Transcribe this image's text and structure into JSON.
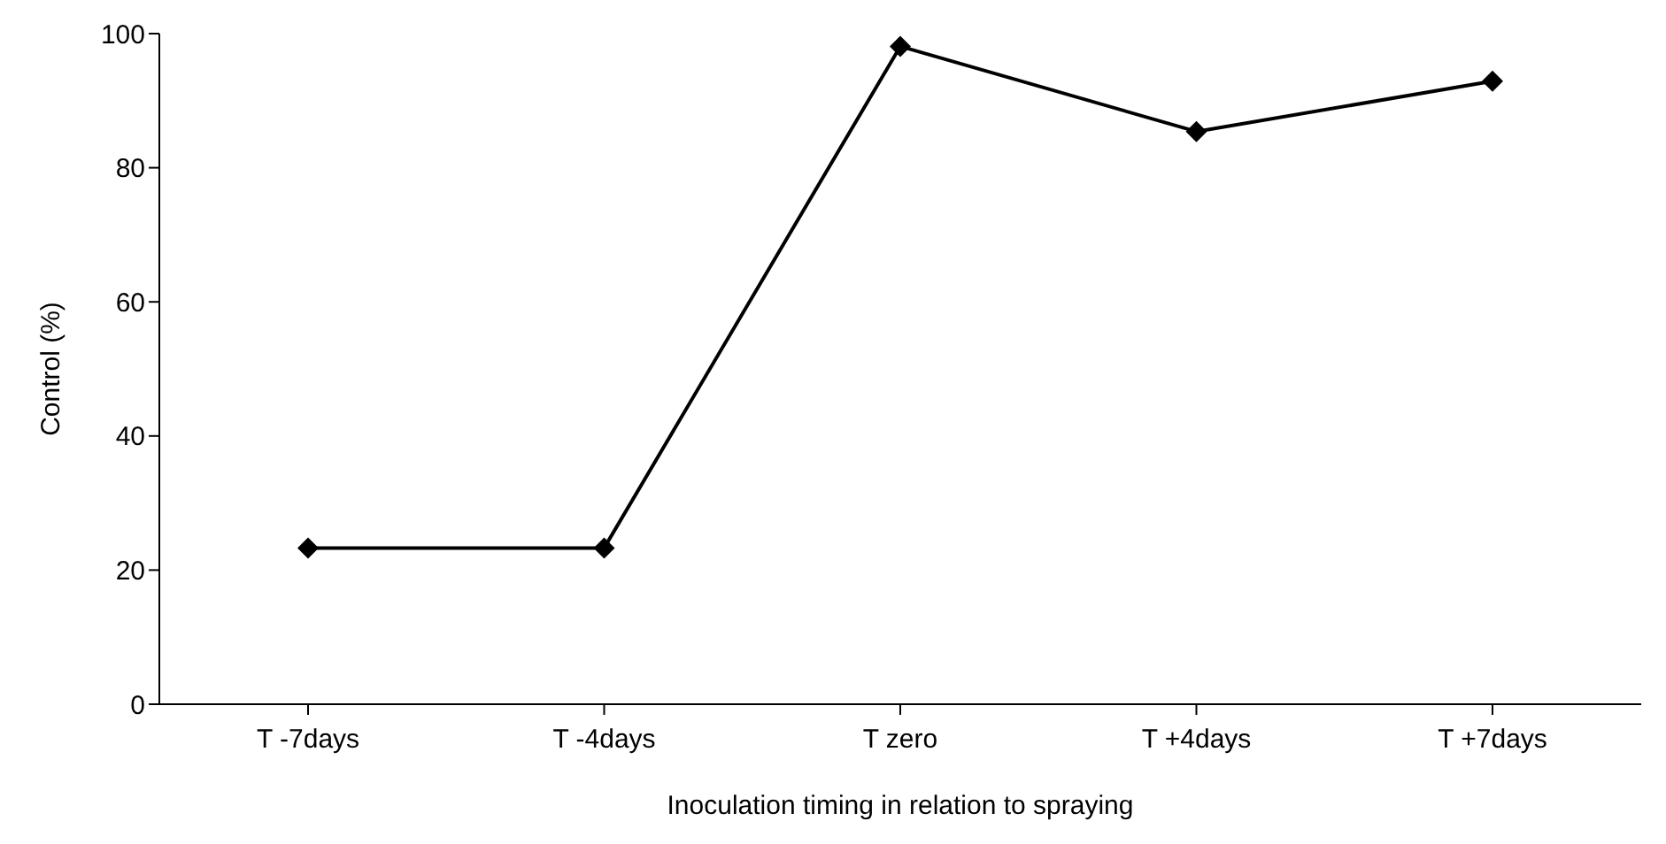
{
  "chart_data": {
    "type": "line",
    "xlabel": "Inoculation timing in relation to spraying",
    "ylabel": "Control (%)",
    "categories": [
      "T -7days",
      "T -4days",
      "T zero",
      "T +4days",
      "T +7days"
    ],
    "series": [
      {
        "color": "#000000",
        "values": [
          23.3,
          23.3,
          98.1,
          85.4,
          92.9
        ]
      }
    ],
    "ylim": [
      0,
      100
    ],
    "yticks": [
      0,
      20,
      40,
      60,
      80,
      100
    ],
    "grid": false,
    "legend": false,
    "marker": "diamond",
    "line_style": "solid"
  }
}
